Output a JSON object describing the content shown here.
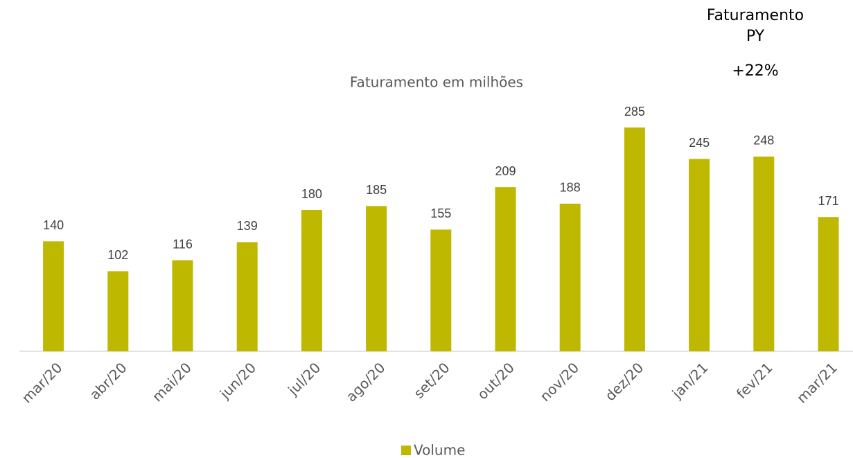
{
  "chart_data": {
    "type": "bar",
    "title": "Faturamento em milhões",
    "annotations": [
      "Faturamento\nPY",
      "+22%"
    ],
    "categories": [
      "mar/20",
      "abr/20",
      "mai/20",
      "jun/20",
      "jul/20",
      "ago/20",
      "set/20",
      "out/20",
      "nov/20",
      "dez/20",
      "jan/21",
      "fev/21",
      "mar/21"
    ],
    "series": [
      {
        "name": "Volume",
        "color": "#bfb800",
        "values": [
          140,
          102,
          116,
          139,
          180,
          185,
          155,
          209,
          188,
          285,
          245,
          248,
          171
        ]
      }
    ],
    "ylim": [
      0,
      300
    ],
    "grid": false,
    "legend": "bottom"
  }
}
